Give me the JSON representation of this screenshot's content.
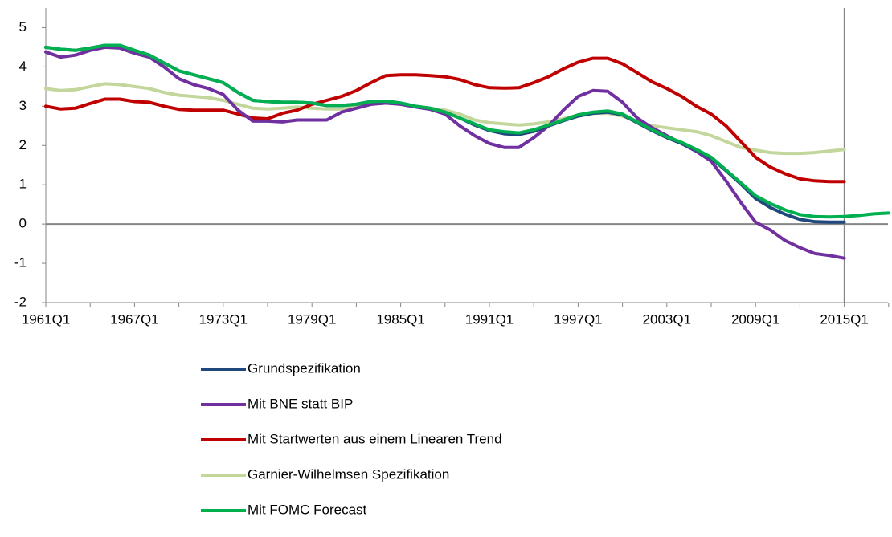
{
  "chart_data": {
    "type": "line",
    "categories": [
      "1961Q1",
      null,
      null,
      null,
      null,
      null,
      "1967Q1",
      null,
      null,
      null,
      null,
      null,
      "1973Q1",
      null,
      null,
      null,
      null,
      null,
      "1979Q1",
      null,
      null,
      null,
      null,
      null,
      "1985Q1",
      null,
      null,
      null,
      null,
      null,
      "1991Q1",
      null,
      null,
      null,
      null,
      null,
      "1997Q1",
      null,
      null,
      null,
      null,
      null,
      "2003Q1",
      null,
      null,
      null,
      null,
      null,
      "2009Q1",
      null,
      null,
      null,
      null,
      null,
      "2015Q1",
      null,
      null,
      null
    ],
    "ylim": [
      -2,
      5.5
    ],
    "yticks": [
      -2,
      -1,
      0,
      1,
      2,
      3,
      4,
      5
    ],
    "grid": false,
    "series": [
      {
        "name": "Grundspezifikation",
        "color": "#1f497d",
        "values": [
          4.5,
          4.45,
          4.42,
          4.48,
          4.55,
          4.55,
          4.42,
          4.3,
          4.1,
          3.9,
          3.8,
          3.7,
          3.6,
          3.35,
          3.15,
          3.12,
          3.1,
          3.1,
          3.08,
          3.02,
          3.02,
          3.05,
          3.12,
          3.13,
          3.08,
          3.0,
          2.95,
          2.85,
          2.7,
          2.52,
          2.38,
          2.3,
          2.28,
          2.36,
          2.5,
          2.63,
          2.75,
          2.82,
          2.85,
          2.78,
          2.58,
          2.38,
          2.2,
          2.05,
          1.88,
          1.68,
          1.36,
          1.02,
          0.65,
          0.42,
          0.25,
          0.12,
          0.06,
          0.05,
          0.05,
          null,
          null,
          null
        ]
      },
      {
        "name": "Mit BNE statt BIP",
        "color": "#7030a0",
        "values": [
          4.38,
          4.25,
          4.3,
          4.42,
          4.5,
          4.48,
          4.35,
          4.25,
          4.0,
          3.7,
          3.55,
          3.45,
          3.3,
          2.9,
          2.62,
          2.62,
          2.6,
          2.65,
          2.65,
          2.65,
          2.85,
          2.95,
          3.05,
          3.08,
          3.05,
          2.98,
          2.92,
          2.8,
          2.5,
          2.25,
          2.05,
          1.95,
          1.95,
          2.2,
          2.5,
          2.9,
          3.25,
          3.4,
          3.38,
          3.1,
          2.7,
          2.45,
          2.25,
          2.05,
          1.85,
          1.6,
          1.1,
          0.55,
          0.05,
          -0.15,
          -0.42,
          -0.6,
          -0.75,
          -0.8,
          -0.87,
          null,
          null,
          null
        ]
      },
      {
        "name": "Mit Startwerten aus einem Linearen Trend",
        "color": "#c00000",
        "values": [
          3.0,
          2.93,
          2.95,
          3.07,
          3.18,
          3.18,
          3.12,
          3.1,
          3.0,
          2.92,
          2.9,
          2.9,
          2.9,
          2.8,
          2.7,
          2.68,
          2.82,
          2.9,
          3.05,
          3.15,
          3.25,
          3.4,
          3.6,
          3.78,
          3.8,
          3.8,
          3.78,
          3.75,
          3.68,
          3.55,
          3.47,
          3.46,
          3.47,
          3.6,
          3.75,
          3.95,
          4.12,
          4.22,
          4.22,
          4.08,
          3.85,
          3.62,
          3.45,
          3.25,
          3.0,
          2.8,
          2.5,
          2.1,
          1.7,
          1.45,
          1.28,
          1.15,
          1.1,
          1.08,
          1.08,
          null,
          null,
          null
        ]
      },
      {
        "name": "Garnier-Wilhelmsen Spezifikation",
        "color": "#c3d69b",
        "values": [
          3.45,
          3.4,
          3.42,
          3.5,
          3.57,
          3.55,
          3.5,
          3.45,
          3.35,
          3.28,
          3.25,
          3.22,
          3.15,
          3.05,
          2.95,
          2.93,
          2.95,
          2.98,
          2.95,
          2.93,
          2.93,
          2.98,
          3.05,
          3.08,
          3.05,
          3.0,
          2.95,
          2.9,
          2.8,
          2.65,
          2.58,
          2.55,
          2.52,
          2.55,
          2.6,
          2.68,
          2.78,
          2.82,
          2.82,
          2.75,
          2.6,
          2.5,
          2.45,
          2.4,
          2.35,
          2.25,
          2.1,
          1.95,
          1.88,
          1.82,
          1.8,
          1.8,
          1.82,
          1.86,
          1.9,
          null,
          null,
          null
        ]
      },
      {
        "name": "Mit FOMC Forecast",
        "color": "#00b050",
        "values": [
          4.5,
          4.45,
          4.42,
          4.48,
          4.55,
          4.55,
          4.42,
          4.3,
          4.1,
          3.9,
          3.8,
          3.7,
          3.6,
          3.35,
          3.15,
          3.12,
          3.1,
          3.1,
          3.08,
          3.02,
          3.02,
          3.05,
          3.12,
          3.13,
          3.08,
          3.0,
          2.95,
          2.85,
          2.7,
          2.55,
          2.4,
          2.35,
          2.32,
          2.4,
          2.52,
          2.65,
          2.78,
          2.85,
          2.88,
          2.8,
          2.6,
          2.4,
          2.22,
          2.08,
          1.9,
          1.7,
          1.38,
          1.05,
          0.72,
          0.52,
          0.36,
          0.24,
          0.19,
          0.18,
          0.19,
          0.22,
          0.26,
          0.28
        ]
      }
    ]
  }
}
